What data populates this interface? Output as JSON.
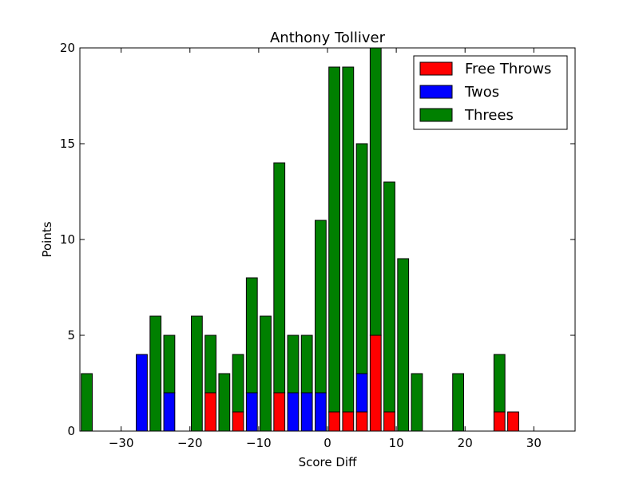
{
  "chart_data": {
    "type": "bar",
    "stacked": true,
    "title": "Anthony Tolliver",
    "xlabel": "Score Diff",
    "ylabel": "Points",
    "xlim": [
      -36,
      36
    ],
    "ylim": [
      0,
      20
    ],
    "xticks": [
      -30,
      -20,
      -10,
      0,
      10,
      20,
      30
    ],
    "xtick_labels": [
      "−30",
      "−20",
      "−10",
      "0",
      "10",
      "20",
      "30"
    ],
    "yticks": [
      0,
      5,
      10,
      15,
      20
    ],
    "ytick_labels": [
      "0",
      "5",
      "10",
      "15",
      "20"
    ],
    "legend_position": "top-right",
    "grid": false,
    "bar_width": 1.6,
    "x": [
      -35,
      -27,
      -25,
      -23,
      -19,
      -17,
      -15,
      -13,
      -11,
      -9,
      -7,
      -5,
      -3,
      -1,
      1,
      3,
      5,
      7,
      9,
      11,
      13,
      19,
      25,
      27
    ],
    "series": [
      {
        "name": "Free Throws",
        "color": "#ff0000",
        "values": [
          0,
          0,
          0,
          0,
          0,
          2,
          0,
          1,
          0,
          0,
          2,
          0,
          0,
          0,
          1,
          1,
          1,
          5,
          1,
          0,
          0,
          0,
          1,
          1
        ]
      },
      {
        "name": "Twos",
        "color": "#0000ff",
        "values": [
          0,
          4,
          0,
          2,
          0,
          0,
          0,
          0,
          2,
          0,
          0,
          2,
          2,
          2,
          0,
          0,
          2,
          0,
          0,
          0,
          0,
          0,
          0,
          0
        ]
      },
      {
        "name": "Threes",
        "color": "#008000",
        "values": [
          3,
          0,
          6,
          3,
          6,
          3,
          3,
          3,
          6,
          6,
          12,
          3,
          3,
          9,
          18,
          18,
          12,
          15,
          12,
          9,
          3,
          3,
          3,
          0
        ]
      }
    ]
  }
}
